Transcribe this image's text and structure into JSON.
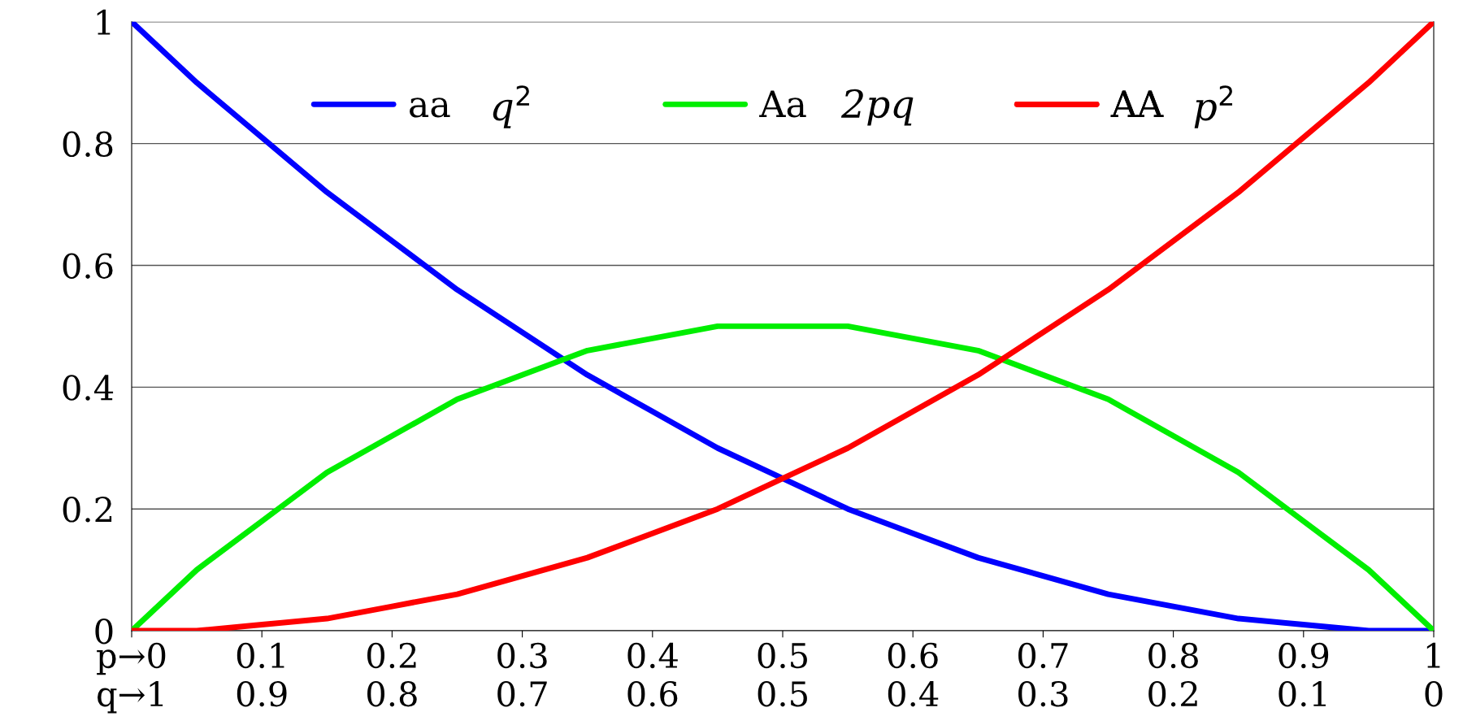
{
  "chart_data": {
    "type": "line",
    "x": [
      0,
      0.05,
      0.1,
      0.15,
      0.2,
      0.25,
      0.3,
      0.35,
      0.4,
      0.45,
      0.5,
      0.55,
      0.6,
      0.65,
      0.7,
      0.75,
      0.8,
      0.85,
      0.9,
      0.95,
      1
    ],
    "series": [
      {
        "name": "aa",
        "color": "#0000ff",
        "values": [
          1,
          0.9,
          0.81,
          0.72,
          0.64,
          0.56,
          0.49,
          0.42,
          0.36,
          0.3,
          0.25,
          0.2,
          0.16,
          0.12,
          0.09,
          0.06,
          0.04,
          0.02,
          0.01,
          0,
          0
        ]
      },
      {
        "name": "Aa",
        "color": "#00ee00",
        "values": [
          0,
          0.1,
          0.18,
          0.26,
          0.32,
          0.38,
          0.42,
          0.46,
          0.48,
          0.5,
          0.5,
          0.5,
          0.48,
          0.46,
          0.42,
          0.38,
          0.32,
          0.26,
          0.18,
          0.1,
          0
        ]
      },
      {
        "name": "AA",
        "color": "#ff0000",
        "values": [
          0,
          0,
          0.01,
          0.02,
          0.04,
          0.06,
          0.09,
          0.12,
          0.16,
          0.2,
          0.25,
          0.3,
          0.36,
          0.42,
          0.49,
          0.56,
          0.64,
          0.72,
          0.81,
          0.9,
          1
        ]
      }
    ],
    "annotations": [
      "q$^{2}$",
      "2pq",
      "p$^{2}$"
    ],
    "xlim": [
      0,
      1
    ],
    "xticks": [
      {
        "value": 0,
        "label": "p→0"
      },
      0.1,
      0.2,
      0.3,
      0.4,
      0.5,
      0.6,
      0.7,
      0.8,
      0.9,
      1
    ],
    "x2lim": [
      1,
      0
    ],
    "x2ticks": [
      {
        "value": 1,
        "label": "q→1"
      },
      0.9,
      0.8,
      0.7,
      0.6,
      0.5,
      0.4,
      0.3,
      0.2,
      0.1,
      0
    ],
    "ylim": [
      0,
      1
    ],
    "yticks": [
      0,
      0.2,
      0.4,
      0.6,
      0.8,
      1
    ],
    "grid": "y",
    "legend": "top",
    "marker": "none",
    "line_style": "solid"
  }
}
